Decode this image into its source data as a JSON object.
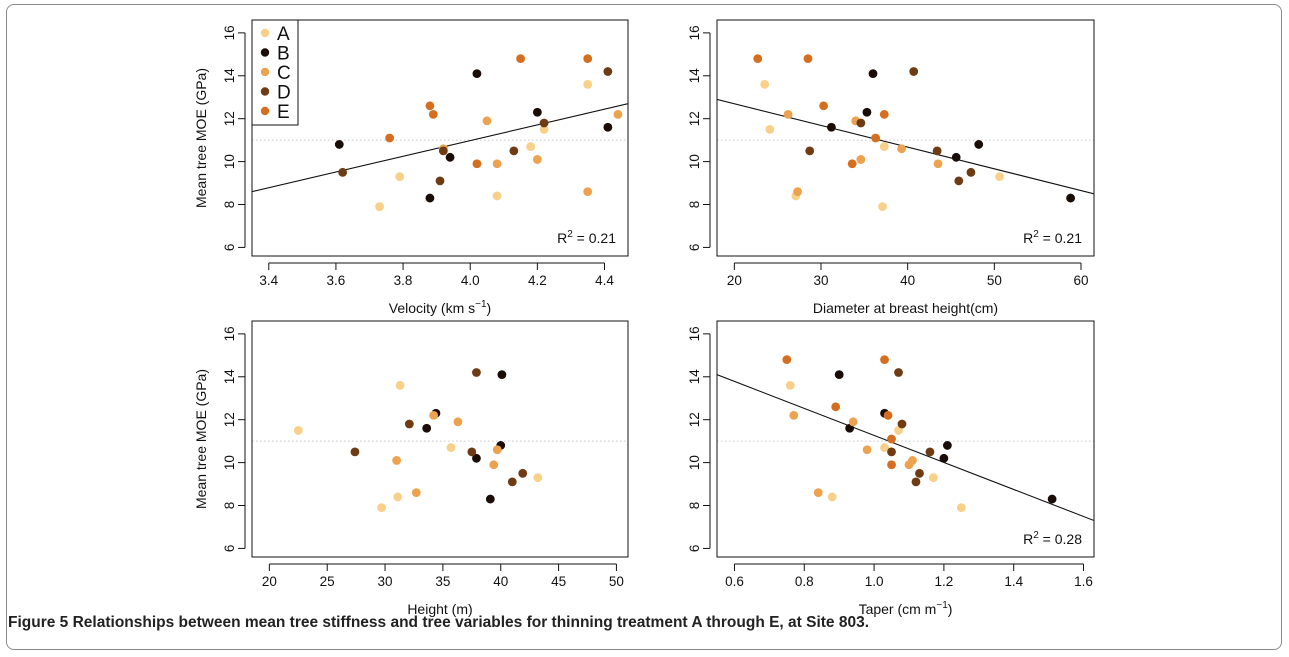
{
  "caption": {
    "label": "Figure 5",
    "text": "Relationships between mean tree stiffness and tree variables for thinning treatment A through E, at Site 803."
  },
  "treatment_colors": {
    "A": "#f9d08a",
    "B": "#1a0c07",
    "C": "#eda24f",
    "D": "#6f3b14",
    "E": "#d56f1f"
  },
  "legend": {
    "entries": [
      "A",
      "B",
      "C",
      "D",
      "E"
    ]
  },
  "chart_data": [
    {
      "type": "scatter",
      "xlabel": "Velocity (km s",
      "xlabel_sup": "−1",
      "xlabel_end": ")",
      "ylabel": "Mean tree MOE (GPa)",
      "xlim": [
        3.35,
        4.47
      ],
      "ylim": [
        5.6,
        16.6
      ],
      "xticks": [
        "3.4",
        "3.6",
        "3.8",
        "4.0",
        "4.2",
        "4.4"
      ],
      "xtick_values": [
        3.4,
        3.6,
        3.8,
        4.0,
        4.2,
        4.4
      ],
      "yticks": [
        "6",
        "8",
        "10",
        "12",
        "14",
        "16"
      ],
      "ytick_values": [
        6,
        8,
        10,
        12,
        14,
        16
      ],
      "reference_line_y": 11,
      "fit": [
        [
          3.35,
          8.6
        ],
        [
          4.47,
          12.7
        ]
      ],
      "r2": "0.21",
      "legend": true,
      "points": [
        {
          "x": 3.73,
          "y": 7.9,
          "g": "A"
        },
        {
          "x": 3.79,
          "y": 9.3,
          "g": "A"
        },
        {
          "x": 4.08,
          "y": 8.4,
          "g": "A"
        },
        {
          "x": 4.18,
          "y": 10.7,
          "g": "A"
        },
        {
          "x": 4.22,
          "y": 11.5,
          "g": "A"
        },
        {
          "x": 4.35,
          "y": 13.6,
          "g": "A"
        },
        {
          "x": 3.61,
          "y": 10.8,
          "g": "B"
        },
        {
          "x": 3.88,
          "y": 8.3,
          "g": "B"
        },
        {
          "x": 3.94,
          "y": 10.2,
          "g": "B"
        },
        {
          "x": 4.02,
          "y": 14.1,
          "g": "B"
        },
        {
          "x": 4.2,
          "y": 12.3,
          "g": "B"
        },
        {
          "x": 4.41,
          "y": 11.6,
          "g": "B"
        },
        {
          "x": 3.92,
          "y": 10.6,
          "g": "C"
        },
        {
          "x": 4.05,
          "y": 11.9,
          "g": "C"
        },
        {
          "x": 4.08,
          "y": 9.9,
          "g": "C"
        },
        {
          "x": 4.2,
          "y": 10.1,
          "g": "C"
        },
        {
          "x": 4.35,
          "y": 8.6,
          "g": "C"
        },
        {
          "x": 4.44,
          "y": 12.2,
          "g": "C"
        },
        {
          "x": 3.62,
          "y": 9.5,
          "g": "D"
        },
        {
          "x": 3.91,
          "y": 9.1,
          "g": "D"
        },
        {
          "x": 3.92,
          "y": 10.5,
          "g": "D"
        },
        {
          "x": 4.13,
          "y": 10.5,
          "g": "D"
        },
        {
          "x": 4.22,
          "y": 11.8,
          "g": "D"
        },
        {
          "x": 4.41,
          "y": 14.2,
          "g": "D"
        },
        {
          "x": 3.76,
          "y": 11.1,
          "g": "E"
        },
        {
          "x": 3.88,
          "y": 12.6,
          "g": "E"
        },
        {
          "x": 3.89,
          "y": 12.2,
          "g": "E"
        },
        {
          "x": 4.02,
          "y": 9.9,
          "g": "E"
        },
        {
          "x": 4.15,
          "y": 14.8,
          "g": "E"
        },
        {
          "x": 4.35,
          "y": 14.8,
          "g": "E"
        }
      ]
    },
    {
      "type": "scatter",
      "xlabel": "Diameter at breast height(cm)",
      "xlabel_sup": "",
      "xlabel_end": "",
      "ylabel": "",
      "xlim": [
        18,
        61.5
      ],
      "ylim": [
        5.6,
        16.6
      ],
      "xticks": [
        "20",
        "30",
        "40",
        "50",
        "60"
      ],
      "xtick_values": [
        20,
        30,
        40,
        50,
        60
      ],
      "yticks": [
        "6",
        "8",
        "10",
        "12",
        "14",
        "16"
      ],
      "ytick_values": [
        6,
        8,
        10,
        12,
        14,
        16
      ],
      "reference_line_y": 11,
      "fit": [
        [
          18,
          12.9
        ],
        [
          61.5,
          8.5
        ]
      ],
      "r2": "0.21",
      "legend": false,
      "points": [
        {
          "x": 23.5,
          "y": 13.6,
          "g": "A"
        },
        {
          "x": 24.1,
          "y": 11.5,
          "g": "A"
        },
        {
          "x": 27.1,
          "y": 8.4,
          "g": "A"
        },
        {
          "x": 37.1,
          "y": 7.9,
          "g": "A"
        },
        {
          "x": 37.3,
          "y": 10.7,
          "g": "A"
        },
        {
          "x": 50.6,
          "y": 9.3,
          "g": "A"
        },
        {
          "x": 31.2,
          "y": 11.6,
          "g": "B"
        },
        {
          "x": 35.3,
          "y": 12.3,
          "g": "B"
        },
        {
          "x": 36.0,
          "y": 14.1,
          "g": "B"
        },
        {
          "x": 45.6,
          "y": 10.2,
          "g": "B"
        },
        {
          "x": 48.2,
          "y": 10.8,
          "g": "B"
        },
        {
          "x": 58.8,
          "y": 8.3,
          "g": "B"
        },
        {
          "x": 26.2,
          "y": 12.2,
          "g": "C"
        },
        {
          "x": 27.3,
          "y": 8.6,
          "g": "C"
        },
        {
          "x": 34.0,
          "y": 11.9,
          "g": "C"
        },
        {
          "x": 34.6,
          "y": 10.1,
          "g": "C"
        },
        {
          "x": 39.3,
          "y": 10.6,
          "g": "C"
        },
        {
          "x": 43.5,
          "y": 9.9,
          "g": "C"
        },
        {
          "x": 28.7,
          "y": 10.5,
          "g": "D"
        },
        {
          "x": 34.6,
          "y": 11.8,
          "g": "D"
        },
        {
          "x": 40.7,
          "y": 14.2,
          "g": "D"
        },
        {
          "x": 43.4,
          "y": 10.5,
          "g": "D"
        },
        {
          "x": 45.9,
          "y": 9.1,
          "g": "D"
        },
        {
          "x": 47.3,
          "y": 9.5,
          "g": "D"
        },
        {
          "x": 22.7,
          "y": 14.8,
          "g": "E"
        },
        {
          "x": 28.5,
          "y": 14.8,
          "g": "E"
        },
        {
          "x": 30.3,
          "y": 12.6,
          "g": "E"
        },
        {
          "x": 33.6,
          "y": 9.9,
          "g": "E"
        },
        {
          "x": 36.3,
          "y": 11.1,
          "g": "E"
        },
        {
          "x": 37.3,
          "y": 12.2,
          "g": "E"
        }
      ]
    },
    {
      "type": "scatter",
      "xlabel": "Height (m)",
      "xlabel_sup": "",
      "xlabel_end": "",
      "ylabel": "Mean tree MOE (GPa)",
      "xlim": [
        18.5,
        51
      ],
      "ylim": [
        5.6,
        16.6
      ],
      "xticks": [
        "20",
        "25",
        "30",
        "35",
        "40",
        "45",
        "50"
      ],
      "xtick_values": [
        20,
        25,
        30,
        35,
        40,
        45,
        50
      ],
      "yticks": [
        "6",
        "8",
        "10",
        "12",
        "14",
        "16"
      ],
      "ytick_values": [
        6,
        8,
        10,
        12,
        14,
        16
      ],
      "reference_line_y": 11,
      "fit": null,
      "r2": "",
      "legend": false,
      "points": [
        {
          "x": 22.5,
          "y": 11.5,
          "g": "A"
        },
        {
          "x": 29.7,
          "y": 7.9,
          "g": "A"
        },
        {
          "x": 31.1,
          "y": 8.4,
          "g": "A"
        },
        {
          "x": 31.3,
          "y": 13.6,
          "g": "A"
        },
        {
          "x": 35.7,
          "y": 10.7,
          "g": "A"
        },
        {
          "x": 43.2,
          "y": 9.3,
          "g": "A"
        },
        {
          "x": 33.6,
          "y": 11.6,
          "g": "B"
        },
        {
          "x": 34.4,
          "y": 12.3,
          "g": "B"
        },
        {
          "x": 37.9,
          "y": 10.2,
          "g": "B"
        },
        {
          "x": 39.1,
          "y": 8.3,
          "g": "B"
        },
        {
          "x": 40.0,
          "y": 10.8,
          "g": "B"
        },
        {
          "x": 40.1,
          "y": 14.1,
          "g": "B"
        },
        {
          "x": 31.0,
          "y": 10.1,
          "g": "C"
        },
        {
          "x": 32.7,
          "y": 8.6,
          "g": "C"
        },
        {
          "x": 34.2,
          "y": 12.2,
          "g": "C"
        },
        {
          "x": 36.3,
          "y": 11.9,
          "g": "C"
        },
        {
          "x": 39.4,
          "y": 9.9,
          "g": "C"
        },
        {
          "x": 39.7,
          "y": 10.6,
          "g": "C"
        },
        {
          "x": 27.4,
          "y": 10.5,
          "g": "D"
        },
        {
          "x": 32.1,
          "y": 11.8,
          "g": "D"
        },
        {
          "x": 37.5,
          "y": 10.5,
          "g": "D"
        },
        {
          "x": 37.9,
          "y": 14.2,
          "g": "D"
        },
        {
          "x": 41.0,
          "y": 9.1,
          "g": "D"
        },
        {
          "x": 41.9,
          "y": 9.5,
          "g": "D"
        }
      ]
    },
    {
      "type": "scatter",
      "xlabel": "Taper (cm m",
      "xlabel_sup": "−1",
      "xlabel_end": ")",
      "ylabel": "",
      "xlim": [
        0.55,
        1.63
      ],
      "ylim": [
        5.6,
        16.6
      ],
      "xticks": [
        "0.6",
        "0.8",
        "1.0",
        "1.2",
        "1.4",
        "1.6"
      ],
      "xtick_values": [
        0.6,
        0.8,
        1.0,
        1.2,
        1.4,
        1.6
      ],
      "yticks": [
        "6",
        "8",
        "10",
        "12",
        "14",
        "16"
      ],
      "ytick_values": [
        6,
        8,
        10,
        12,
        14,
        16
      ],
      "reference_line_y": 11,
      "fit": [
        [
          0.55,
          14.1
        ],
        [
          1.63,
          7.3
        ]
      ],
      "r2": "0.28",
      "legend": false,
      "points": [
        {
          "x": 0.76,
          "y": 13.6,
          "g": "A"
        },
        {
          "x": 0.88,
          "y": 8.4,
          "g": "A"
        },
        {
          "x": 1.03,
          "y": 10.7,
          "g": "A"
        },
        {
          "x": 1.07,
          "y": 11.5,
          "g": "A"
        },
        {
          "x": 1.17,
          "y": 9.3,
          "g": "A"
        },
        {
          "x": 1.25,
          "y": 7.9,
          "g": "A"
        },
        {
          "x": 0.9,
          "y": 14.1,
          "g": "B"
        },
        {
          "x": 0.93,
          "y": 11.6,
          "g": "B"
        },
        {
          "x": 1.03,
          "y": 12.3,
          "g": "B"
        },
        {
          "x": 1.2,
          "y": 10.2,
          "g": "B"
        },
        {
          "x": 1.21,
          "y": 10.8,
          "g": "B"
        },
        {
          "x": 1.51,
          "y": 8.3,
          "g": "B"
        },
        {
          "x": 0.77,
          "y": 12.2,
          "g": "C"
        },
        {
          "x": 0.84,
          "y": 8.6,
          "g": "C"
        },
        {
          "x": 0.94,
          "y": 11.9,
          "g": "C"
        },
        {
          "x": 0.98,
          "y": 10.6,
          "g": "C"
        },
        {
          "x": 1.1,
          "y": 9.9,
          "g": "C"
        },
        {
          "x": 1.11,
          "y": 10.1,
          "g": "C"
        },
        {
          "x": 1.05,
          "y": 10.5,
          "g": "D"
        },
        {
          "x": 1.07,
          "y": 14.2,
          "g": "D"
        },
        {
          "x": 1.08,
          "y": 11.8,
          "g": "D"
        },
        {
          "x": 1.12,
          "y": 9.1,
          "g": "D"
        },
        {
          "x": 1.13,
          "y": 9.5,
          "g": "D"
        },
        {
          "x": 1.16,
          "y": 10.5,
          "g": "D"
        },
        {
          "x": 0.75,
          "y": 14.8,
          "g": "E"
        },
        {
          "x": 0.89,
          "y": 12.6,
          "g": "E"
        },
        {
          "x": 1.03,
          "y": 14.8,
          "g": "E"
        },
        {
          "x": 1.04,
          "y": 12.2,
          "g": "E"
        },
        {
          "x": 1.05,
          "y": 11.1,
          "g": "E"
        },
        {
          "x": 1.05,
          "y": 9.9,
          "g": "E"
        }
      ]
    }
  ]
}
